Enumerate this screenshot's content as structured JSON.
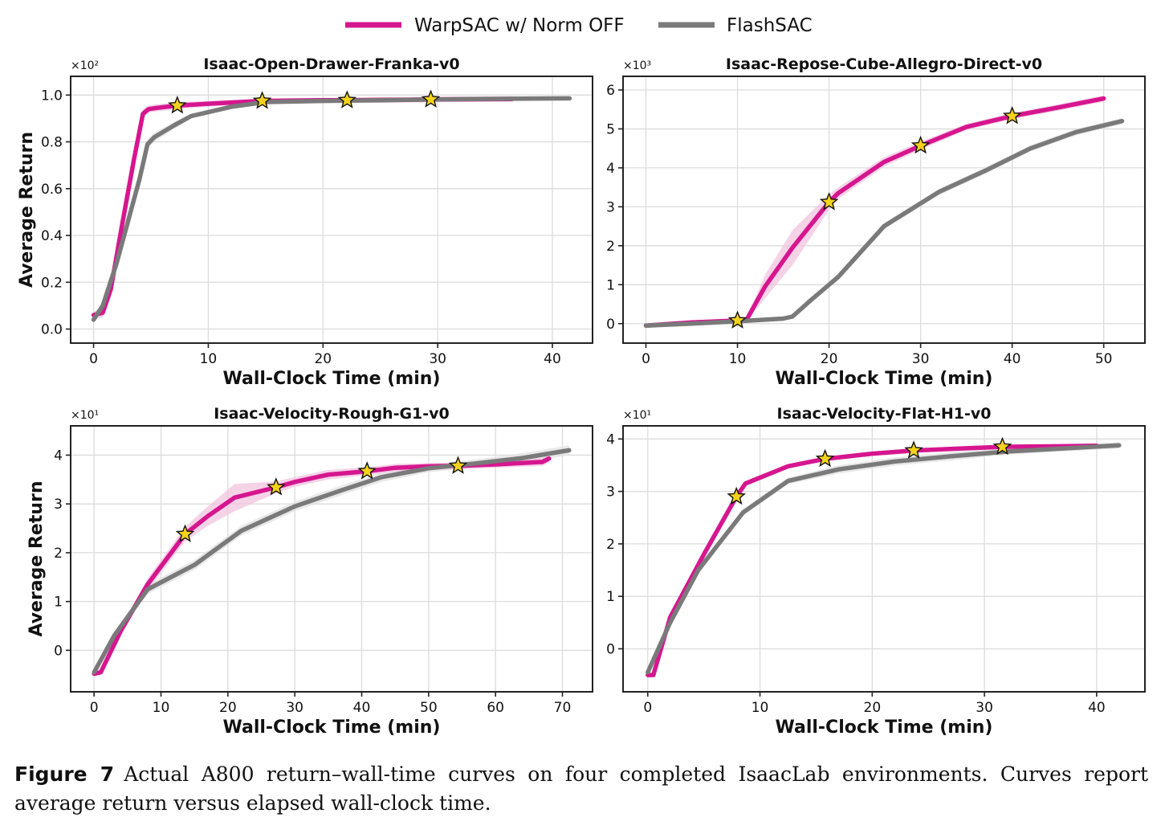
{
  "legend": {
    "items": [
      {
        "label": "WarpSAC w/ Norm OFF",
        "color": "#d6168f"
      },
      {
        "label": "FlashSAC",
        "color": "#7a7a7a"
      }
    ]
  },
  "caption": {
    "label": "Figure 7",
    "text": "Actual A800 return–wall-time curves on four completed IsaacLab environments. Curves report average return versus elapsed wall-clock time."
  },
  "colors": {
    "warpsac": "#d6168f",
    "warpsac_band": "#f2c4df",
    "flashsac": "#7a7a7a",
    "flashsac_band": "#e2e2e2",
    "star_fill": "#f5d21c",
    "grid": "#dcdcdc",
    "axis": "#222222"
  },
  "chart_data": [
    {
      "type": "line",
      "title": "Isaac-Open-Drawer-Franka-v0",
      "xlabel": "Wall-Clock Time (min)",
      "ylabel": "Average Return",
      "y_multiplier": "×10²",
      "xlim": [
        -2,
        43.5
      ],
      "ylim": [
        -0.06,
        1.08
      ],
      "xticks": [
        0,
        10,
        20,
        30,
        40
      ],
      "yticks": [
        0.0,
        0.2,
        0.4,
        0.6,
        0.8,
        1.0
      ],
      "ytick_labels": [
        "0.0",
        "0.2",
        "0.4",
        "0.6",
        "0.8",
        "1.0"
      ],
      "grid": true,
      "series": [
        {
          "name": "WarpSAC w/ Norm OFF",
          "x": [
            0,
            0.8,
            1.5,
            2.5,
            3.5,
            4.3,
            4.8,
            5.5,
            7.3,
            10,
            14.7,
            20,
            22.1,
            25,
            29.4,
            33,
            36.5
          ],
          "y": [
            0.06,
            0.07,
            0.17,
            0.45,
            0.72,
            0.92,
            0.94,
            0.945,
            0.955,
            0.963,
            0.975,
            0.978,
            0.978,
            0.979,
            0.981,
            0.982,
            0.983
          ],
          "band": [
            0.015,
            0.02,
            0.03,
            0.04,
            0.03,
            0.02,
            0.015,
            0.015,
            0.015,
            0.012,
            0.01,
            0.01,
            0.01,
            0.012,
            0.012,
            0.012,
            0.012
          ],
          "markers": [
            [
              7.3,
              0.955
            ],
            [
              14.7,
              0.975
            ],
            [
              22.1,
              0.978
            ],
            [
              29.4,
              0.981
            ]
          ]
        },
        {
          "name": "FlashSAC",
          "x": [
            0,
            0.8,
            2,
            3,
            4,
            4.7,
            5.3,
            7,
            8.5,
            12,
            15,
            20,
            25,
            30,
            35,
            41.5
          ],
          "y": [
            0.04,
            0.1,
            0.28,
            0.46,
            0.64,
            0.79,
            0.82,
            0.87,
            0.91,
            0.95,
            0.97,
            0.975,
            0.978,
            0.981,
            0.984,
            0.986
          ],
          "band": [
            0.01,
            0.015,
            0.02,
            0.02,
            0.02,
            0.02,
            0.02,
            0.015,
            0.01,
            0.01,
            0.008,
            0.008,
            0.008,
            0.008,
            0.008,
            0.008
          ]
        }
      ]
    },
    {
      "type": "line",
      "title": "Isaac-Repose-Cube-Allegro-Direct-v0",
      "xlabel": "Wall-Clock Time (min)",
      "ylabel": "",
      "y_multiplier": "×10³",
      "xlim": [
        -2.5,
        54.5
      ],
      "ylim": [
        -0.5,
        6.35
      ],
      "xticks": [
        0,
        10,
        20,
        30,
        40,
        50
      ],
      "yticks": [
        0,
        1,
        2,
        3,
        4,
        5,
        6
      ],
      "ytick_labels": [
        "0",
        "1",
        "2",
        "3",
        "4",
        "5",
        "6"
      ],
      "grid": true,
      "series": [
        {
          "name": "WarpSAC w/ Norm OFF",
          "x": [
            0,
            5,
            10,
            11,
            13,
            16,
            20,
            21,
            26,
            30,
            35,
            40,
            45,
            50
          ],
          "y": [
            -0.05,
            0.03,
            0.08,
            0.1,
            0.95,
            1.95,
            3.12,
            3.35,
            4.15,
            4.57,
            5.05,
            5.33,
            5.55,
            5.78
          ],
          "band": [
            0.03,
            0.03,
            0.03,
            0.05,
            0.3,
            0.45,
            0.2,
            0.15,
            0.12,
            0.1,
            0.08,
            0.08,
            0.08,
            0.08
          ],
          "markers": [
            [
              10,
              0.08
            ],
            [
              20,
              3.12
            ],
            [
              30,
              4.57
            ],
            [
              40,
              5.33
            ]
          ]
        },
        {
          "name": "FlashSAC",
          "x": [
            0,
            5,
            10,
            15,
            16,
            18,
            21,
            26,
            32,
            37,
            42,
            47,
            52
          ],
          "y": [
            -0.05,
            0.0,
            0.06,
            0.13,
            0.18,
            0.6,
            1.2,
            2.5,
            3.38,
            3.92,
            4.5,
            4.92,
            5.2
          ],
          "band": [
            0.03,
            0.03,
            0.03,
            0.03,
            0.03,
            0.05,
            0.08,
            0.08,
            0.08,
            0.08,
            0.08,
            0.08,
            0.08
          ]
        }
      ]
    },
    {
      "type": "line",
      "title": "Isaac-Velocity-Rough-G1-v0",
      "xlabel": "Wall-Clock Time (min)",
      "ylabel": "Average Return",
      "y_multiplier": "×10¹",
      "xlim": [
        -3.5,
        74.5
      ],
      "ylim": [
        -0.85,
        4.6
      ],
      "xticks": [
        0,
        10,
        20,
        30,
        40,
        50,
        60,
        70
      ],
      "yticks": [
        0,
        1,
        2,
        3,
        4
      ],
      "ytick_labels": [
        "0",
        "1",
        "2",
        "3",
        "4"
      ],
      "grid": true,
      "series": [
        {
          "name": "WarpSAC w/ Norm OFF",
          "x": [
            0,
            1,
            4,
            8,
            13.6,
            17,
            21,
            27.2,
            30,
            35,
            40.8,
            45,
            50,
            54.4,
            60,
            67,
            68
          ],
          "y": [
            -0.48,
            -0.45,
            0.4,
            1.35,
            2.38,
            2.75,
            3.13,
            3.34,
            3.45,
            3.6,
            3.67,
            3.74,
            3.77,
            3.78,
            3.81,
            3.86,
            3.93
          ],
          "band": [
            0.03,
            0.05,
            0.08,
            0.12,
            0.15,
            0.2,
            0.28,
            0.12,
            0.1,
            0.1,
            0.08,
            0.08,
            0.07,
            0.07,
            0.07,
            0.08,
            0.08
          ],
          "markers": [
            [
              13.6,
              2.38
            ],
            [
              27.2,
              3.34
            ],
            [
              40.8,
              3.67
            ],
            [
              54.4,
              3.78
            ]
          ]
        },
        {
          "name": "FlashSAC",
          "x": [
            0,
            3,
            8,
            15,
            22,
            30,
            37,
            43,
            50,
            57,
            64,
            71
          ],
          "y": [
            -0.45,
            0.3,
            1.25,
            1.75,
            2.45,
            2.95,
            3.28,
            3.55,
            3.73,
            3.83,
            3.94,
            4.1
          ],
          "band": [
            0.05,
            0.08,
            0.1,
            0.1,
            0.1,
            0.1,
            0.1,
            0.1,
            0.08,
            0.08,
            0.1,
            0.1
          ]
        }
      ]
    },
    {
      "type": "line",
      "title": "Isaac-Velocity-Flat-H1-v0",
      "xlabel": "Wall-Clock Time (min)",
      "ylabel": "",
      "y_multiplier": "×10¹",
      "xlim": [
        -2.2,
        44.3
      ],
      "ylim": [
        -0.82,
        4.25
      ],
      "xticks": [
        0,
        10,
        20,
        30,
        40
      ],
      "yticks": [
        0,
        1,
        2,
        3,
        4
      ],
      "ytick_labels": [
        "0",
        "1",
        "2",
        "3",
        "4"
      ],
      "grid": true,
      "series": [
        {
          "name": "WarpSAC w/ Norm OFF",
          "x": [
            0,
            0.5,
            2,
            5,
            7.9,
            8.7,
            12.5,
            15.8,
            20,
            23.7,
            28,
            31.6,
            36,
            40
          ],
          "y": [
            -0.5,
            -0.5,
            0.6,
            1.8,
            2.9,
            3.15,
            3.48,
            3.62,
            3.72,
            3.78,
            3.82,
            3.85,
            3.86,
            3.87
          ],
          "band": [
            0.03,
            0.03,
            0.05,
            0.06,
            0.05,
            0.05,
            0.04,
            0.04,
            0.04,
            0.04,
            0.04,
            0.04,
            0.04,
            0.04
          ],
          "markers": [
            [
              7.9,
              2.9
            ],
            [
              15.8,
              3.62
            ],
            [
              23.7,
              3.78
            ],
            [
              31.6,
              3.85
            ]
          ]
        },
        {
          "name": "FlashSAC",
          "x": [
            0,
            2,
            4.5,
            8.5,
            12.5,
            17,
            22,
            27,
            32,
            37,
            42
          ],
          "y": [
            -0.45,
            0.5,
            1.5,
            2.6,
            3.2,
            3.42,
            3.57,
            3.67,
            3.76,
            3.82,
            3.88
          ],
          "band": [
            0.03,
            0.05,
            0.06,
            0.06,
            0.06,
            0.08,
            0.08,
            0.08,
            0.06,
            0.06,
            0.06
          ]
        }
      ]
    }
  ]
}
